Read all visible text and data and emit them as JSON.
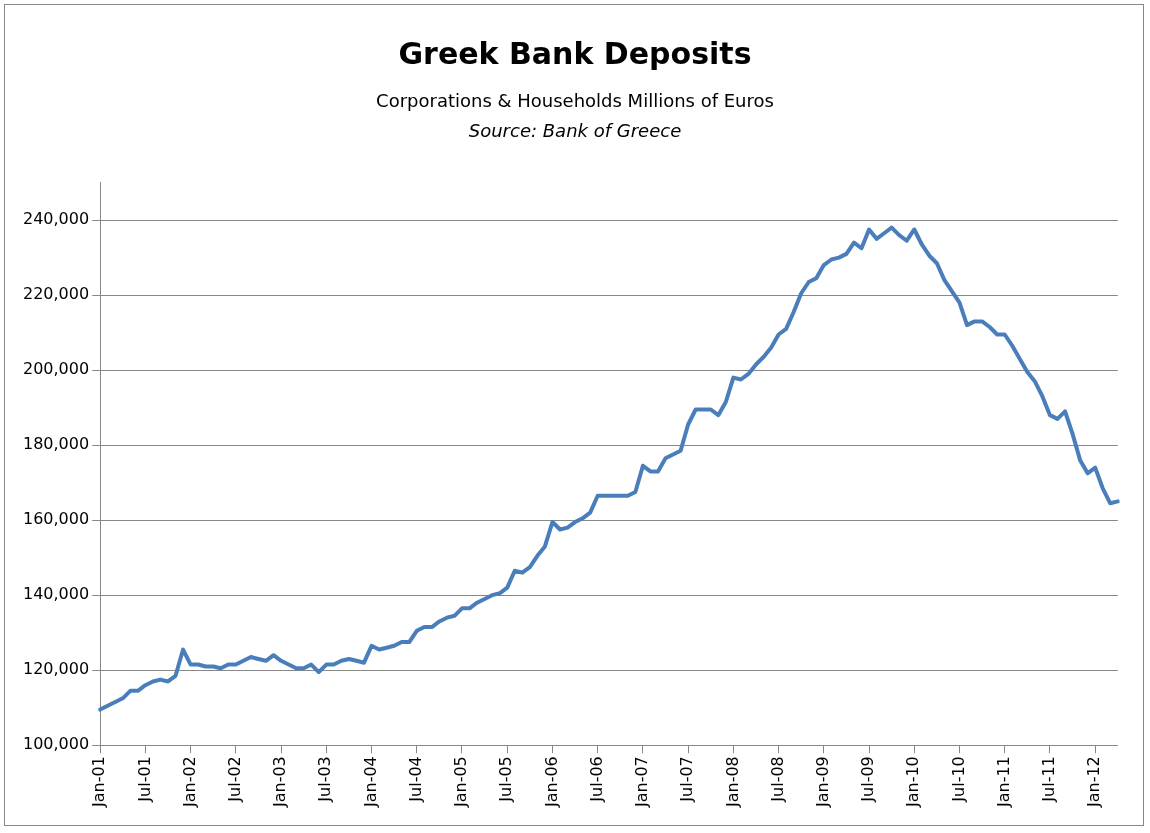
{
  "chart_data": {
    "type": "line",
    "title": "Greek Bank Deposits",
    "subtitle": "Corporations & Households Millions of Euros",
    "annotations": [
      "Source: Bank of Greece"
    ],
    "categories": [
      "Jan-01",
      null,
      null,
      null,
      null,
      null,
      "Jul-01",
      null,
      null,
      null,
      null,
      null,
      "Jan-02",
      null,
      null,
      null,
      null,
      null,
      "Jul-02",
      null,
      null,
      null,
      null,
      null,
      "Jan-03",
      null,
      null,
      null,
      null,
      null,
      "Jul-03",
      null,
      null,
      null,
      null,
      null,
      "Jan-04",
      null,
      null,
      null,
      null,
      null,
      "Jul-04",
      null,
      null,
      null,
      null,
      null,
      "Jan-05",
      null,
      null,
      null,
      null,
      null,
      "Jul-05",
      null,
      null,
      null,
      null,
      null,
      "Jan-06",
      null,
      null,
      null,
      null,
      null,
      "Jul-06",
      null,
      null,
      null,
      null,
      null,
      "Jan-07",
      null,
      null,
      null,
      null,
      null,
      "Jul-07",
      null,
      null,
      null,
      null,
      null,
      "Jan-08",
      null,
      null,
      null,
      null,
      null,
      "Jul-08",
      null,
      null,
      null,
      null,
      null,
      "Jan-09",
      null,
      null,
      null,
      null,
      null,
      "Jul-09",
      null,
      null,
      null,
      null,
      null,
      "Jan-10",
      null,
      null,
      null,
      null,
      null,
      "Jul-10",
      null,
      null,
      null,
      null,
      null,
      "Jan-11",
      null,
      null,
      null,
      null,
      null,
      "Jul-11",
      null,
      null,
      null,
      null,
      null,
      "Jan-12",
      null,
      null,
      null
    ],
    "series": [
      {
        "color": "#4a7ebb",
        "values": [
          109500,
          110500,
          111500,
          112500,
          114500,
          114500,
          116000,
          117000,
          117500,
          117000,
          118500,
          125500,
          121500,
          121500,
          121000,
          121000,
          120500,
          121500,
          121500,
          122500,
          123500,
          123000,
          122500,
          124000,
          122500,
          121500,
          120500,
          120500,
          121500,
          119500,
          121500,
          121500,
          122500,
          123000,
          122500,
          122000,
          126500,
          125500,
          126000,
          126500,
          127500,
          127500,
          130500,
          131500,
          131500,
          133000,
          134000,
          134500,
          136500,
          136500,
          138000,
          139000,
          140000,
          140500,
          142000,
          146500,
          146000,
          147500,
          150500,
          153000,
          159500,
          157500,
          158000,
          159500,
          160500,
          162000,
          166500,
          166500,
          166500,
          166500,
          166500,
          167500,
          174500,
          173000,
          173000,
          176500,
          177500,
          178500,
          185500,
          189500,
          189500,
          189500,
          188000,
          191500,
          198000,
          197500,
          199000,
          201500,
          203500,
          206000,
          209500,
          211000,
          215500,
          220500,
          223500,
          224500,
          228000,
          229500,
          230000,
          231000,
          234000,
          232500,
          237500,
          235000,
          236500,
          238000,
          236000,
          234500,
          237500,
          233500,
          230500,
          228500,
          224000,
          221000,
          218000,
          212000,
          213000,
          213000,
          211500,
          209500,
          209500,
          206500,
          203000,
          199500,
          197000,
          193000,
          188000,
          187000,
          189000,
          183000,
          176000,
          172500,
          174000,
          168500,
          164500,
          165000
        ]
      }
    ],
    "ylim": [
      100000,
      250000
    ],
    "yticks": [
      {
        "value": 100000,
        "label": "100,000"
      },
      {
        "value": 120000,
        "label": "120,000"
      },
      {
        "value": 140000,
        "label": "140,000"
      },
      {
        "value": 160000,
        "label": "160,000"
      },
      {
        "value": 180000,
        "label": "180,000"
      },
      {
        "value": 200000,
        "label": "200,000"
      },
      {
        "value": 220000,
        "label": "220,000"
      },
      {
        "value": 240000,
        "label": "240,000"
      }
    ],
    "grid": "y",
    "legend": false,
    "marker": "none",
    "line_style": "solid"
  }
}
